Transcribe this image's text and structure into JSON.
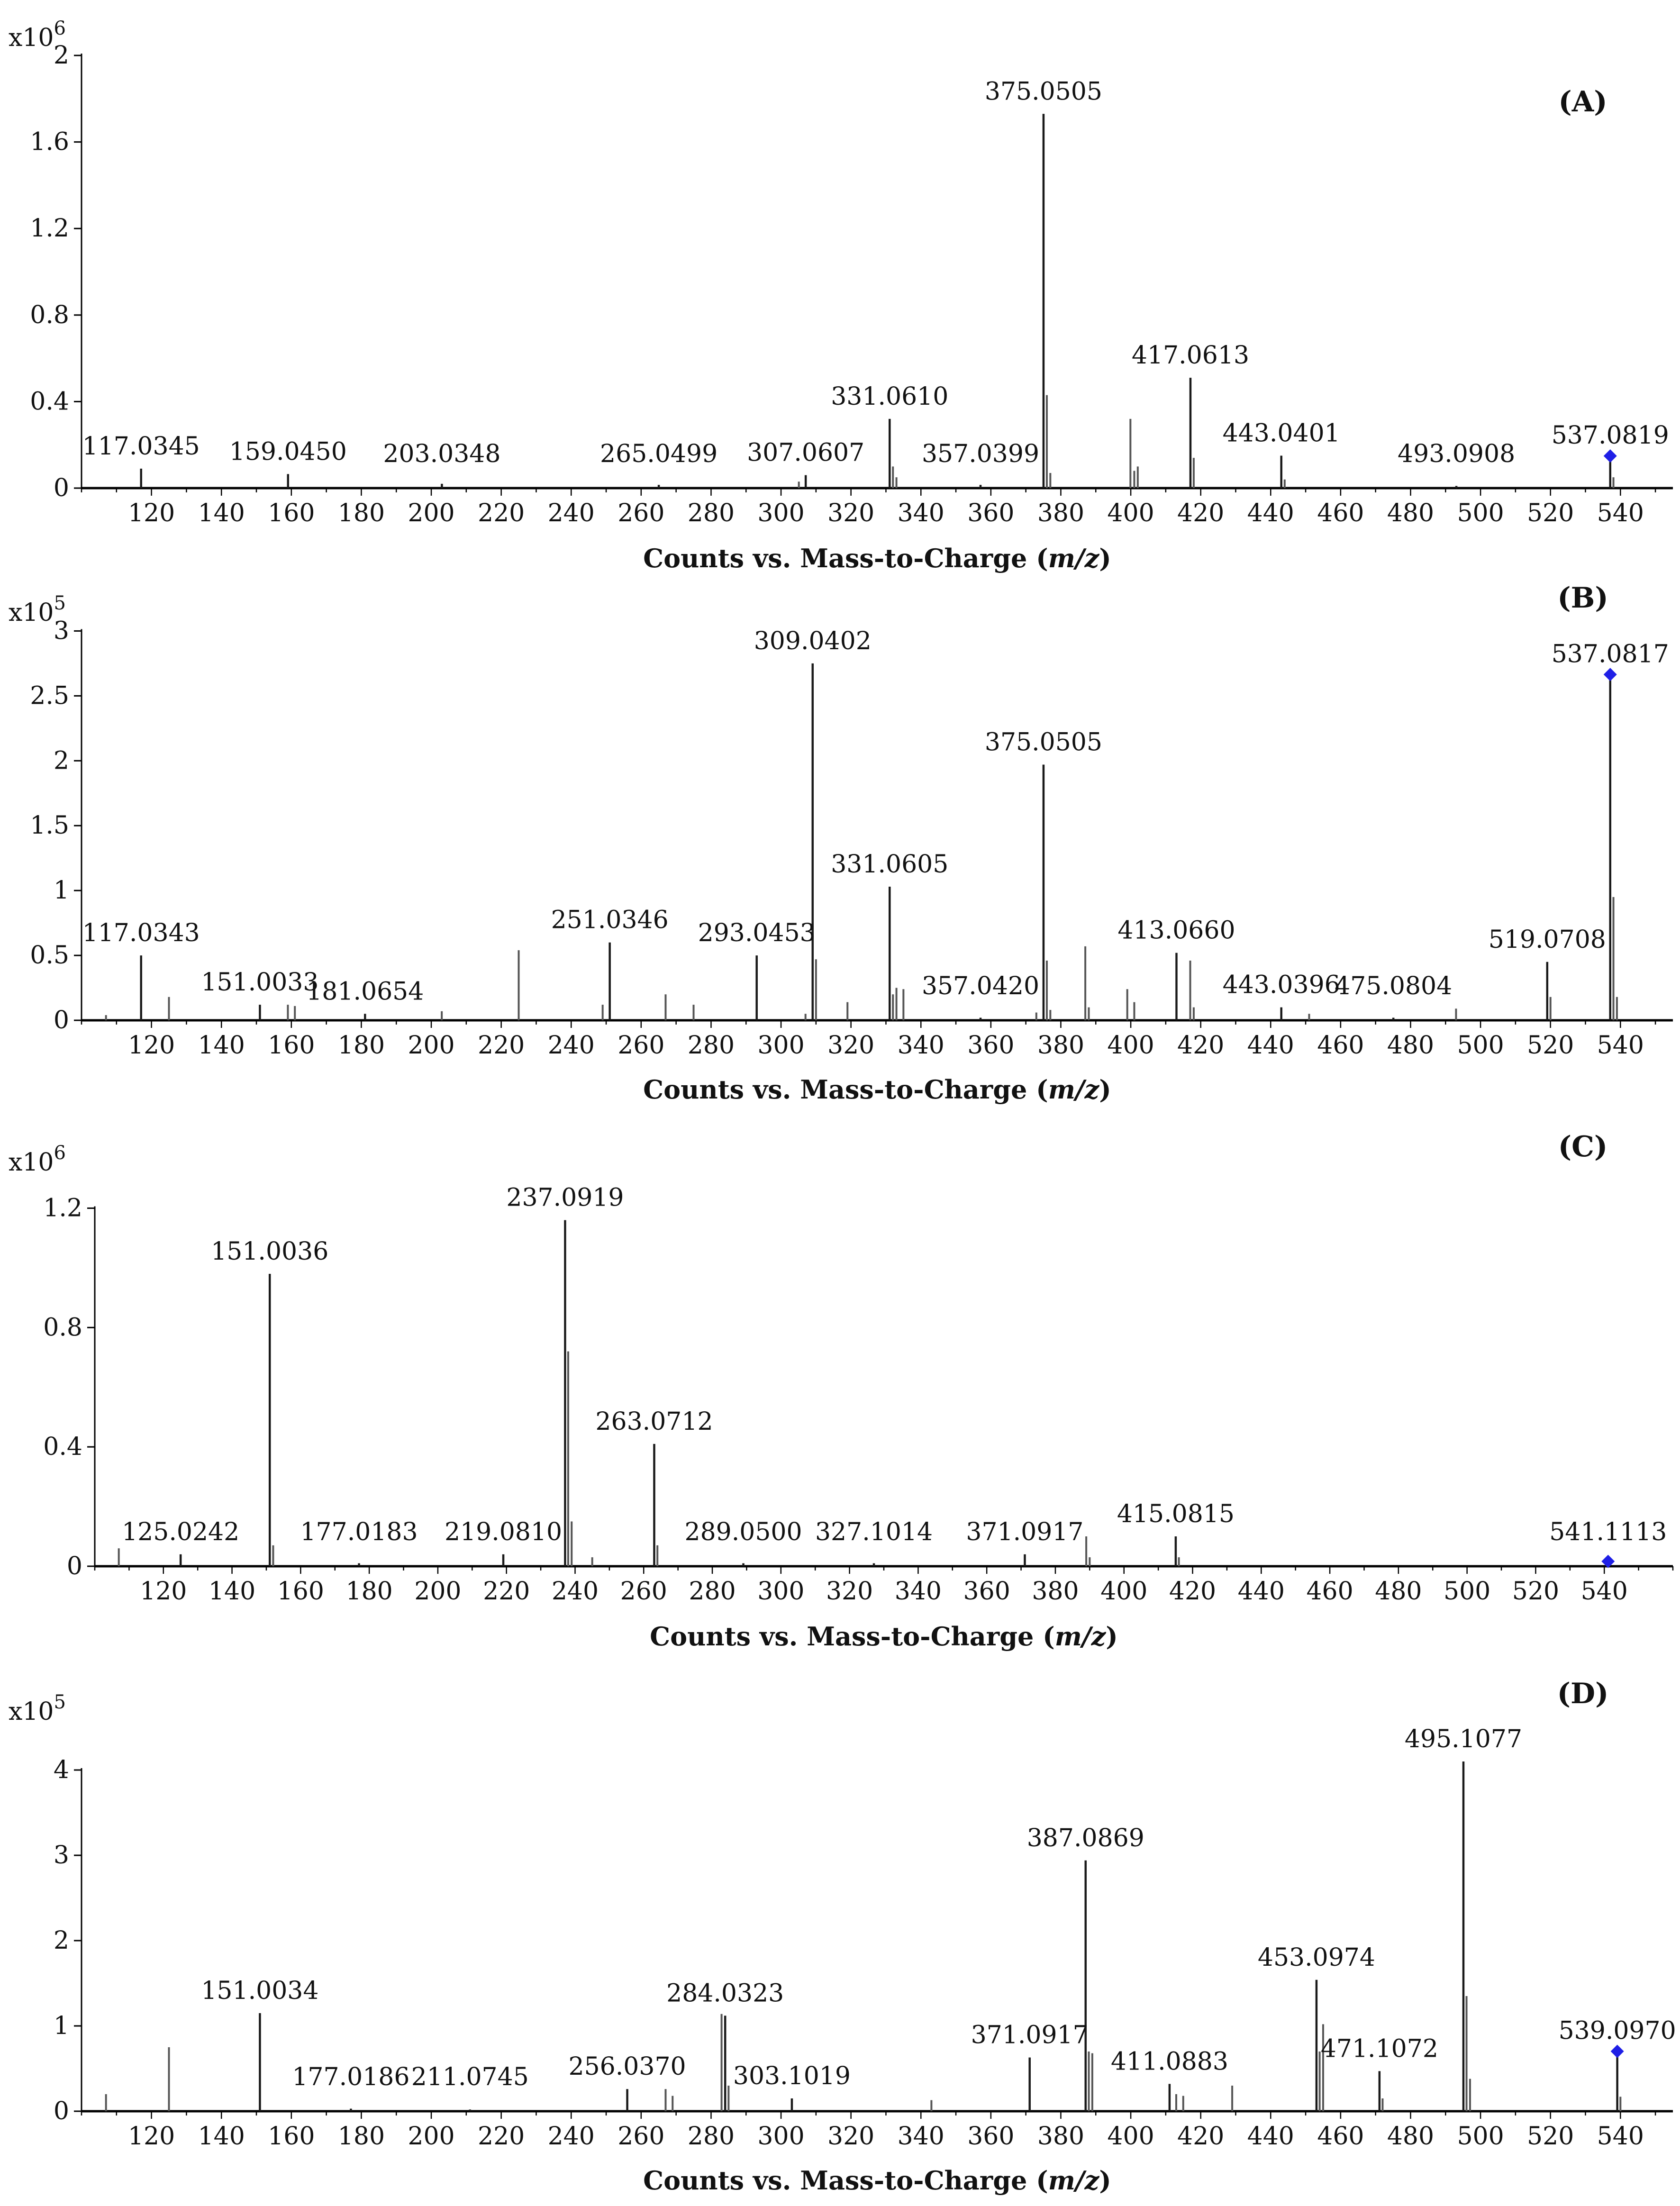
{
  "colors": {
    "axis": "#000000",
    "peak": "#1a1a1a",
    "minor_peak": "#555555",
    "precursor_marker": "#1f1fe6"
  },
  "chart_data": [
    {
      "type": "bar",
      "panel": "(A)",
      "scale_base": "x10",
      "scale_exp": "6",
      "xlabel_prefix": "Counts vs. Mass-to-Charge (",
      "xlabel_unit": "m/z",
      "xlabel_suffix": ")",
      "xlim": [
        100,
        555
      ],
      "ylim": [
        0,
        2.0
      ],
      "yticks": [
        {
          "v": 0,
          "t": "0"
        },
        {
          "v": 0.4,
          "t": "0.4"
        },
        {
          "v": 0.8,
          "t": "0.8"
        },
        {
          "v": 1.2,
          "t": "1.2"
        },
        {
          "v": 1.6,
          "t": "1.6"
        },
        {
          "v": 2.0,
          "t": "2"
        }
      ],
      "xticks": [
        120,
        140,
        160,
        180,
        200,
        220,
        240,
        260,
        280,
        300,
        320,
        340,
        360,
        380,
        400,
        420,
        440,
        460,
        480,
        500,
        520,
        540
      ],
      "peaks": [
        {
          "mz": 117.0345,
          "y": 0.09,
          "label": "117.0345"
        },
        {
          "mz": 159.045,
          "y": 0.065,
          "label": "159.0450"
        },
        {
          "mz": 203.0348,
          "y": 0.02,
          "label": "203.0348"
        },
        {
          "mz": 265.0499,
          "y": 0.015,
          "label": "265.0499"
        },
        {
          "mz": 307.0607,
          "y": 0.06,
          "label": "307.0607"
        },
        {
          "mz": 305.1,
          "y": 0.03
        },
        {
          "mz": 331.061,
          "y": 0.32,
          "label": "331.0610"
        },
        {
          "mz": 332.0,
          "y": 0.1
        },
        {
          "mz": 333.0,
          "y": 0.05
        },
        {
          "mz": 357.0399,
          "y": 0.015,
          "label": "357.0399"
        },
        {
          "mz": 375.0505,
          "y": 1.73,
          "label": "375.0505"
        },
        {
          "mz": 376.0,
          "y": 0.43
        },
        {
          "mz": 377.0,
          "y": 0.07
        },
        {
          "mz": 399.9,
          "y": 0.32
        },
        {
          "mz": 401.0,
          "y": 0.08
        },
        {
          "mz": 402.0,
          "y": 0.1
        },
        {
          "mz": 417.0613,
          "y": 0.51,
          "label": "417.0613"
        },
        {
          "mz": 418.0,
          "y": 0.14
        },
        {
          "mz": 443.0401,
          "y": 0.15,
          "label": "443.0401"
        },
        {
          "mz": 444.0,
          "y": 0.04
        },
        {
          "mz": 493.0908,
          "y": 0.01,
          "label": "493.0908"
        },
        {
          "mz": 537.0819,
          "y": 0.14,
          "label": "537.0819",
          "precursor": true
        },
        {
          "mz": 538.0,
          "y": 0.05
        }
      ]
    },
    {
      "type": "bar",
      "panel": "(B)",
      "scale_base": "x10",
      "scale_exp": "5",
      "xlabel_prefix": "Counts vs. Mass-to-Charge (",
      "xlabel_unit": "m/z",
      "xlabel_suffix": ")",
      "xlim": [
        100,
        555
      ],
      "ylim": [
        0,
        3.25
      ],
      "yticks": [
        {
          "v": 0,
          "t": "0"
        },
        {
          "v": 0.5,
          "t": "0.5"
        },
        {
          "v": 1,
          "t": "1"
        },
        {
          "v": 1.5,
          "t": "1.5"
        },
        {
          "v": 2,
          "t": "2"
        },
        {
          "v": 2.5,
          "t": "2.5"
        },
        {
          "v": 3,
          "t": "3"
        }
      ],
      "xticks": [
        120,
        140,
        160,
        180,
        200,
        220,
        240,
        260,
        280,
        300,
        320,
        340,
        360,
        380,
        400,
        420,
        440,
        460,
        480,
        500,
        520,
        540
      ],
      "peaks": [
        {
          "mz": 107.0,
          "y": 0.04
        },
        {
          "mz": 117.0343,
          "y": 0.5,
          "label": "117.0343"
        },
        {
          "mz": 125.0,
          "y": 0.18
        },
        {
          "mz": 151.0033,
          "y": 0.12,
          "label": "151.0033"
        },
        {
          "mz": 159.0,
          "y": 0.12
        },
        {
          "mz": 161.0,
          "y": 0.11
        },
        {
          "mz": 181.0654,
          "y": 0.05,
          "label": "181.0654"
        },
        {
          "mz": 203.0,
          "y": 0.07
        },
        {
          "mz": 225.0,
          "y": 0.54
        },
        {
          "mz": 249.0,
          "y": 0.12
        },
        {
          "mz": 251.0346,
          "y": 0.6,
          "label": "251.0346"
        },
        {
          "mz": 267.0,
          "y": 0.2
        },
        {
          "mz": 275.0,
          "y": 0.12
        },
        {
          "mz": 293.0453,
          "y": 0.5,
          "label": "293.0453"
        },
        {
          "mz": 307.0,
          "y": 0.05
        },
        {
          "mz": 309.0402,
          "y": 2.75,
          "label": "309.0402"
        },
        {
          "mz": 310.0,
          "y": 0.47
        },
        {
          "mz": 319.0,
          "y": 0.14
        },
        {
          "mz": 331.0605,
          "y": 1.03,
          "label": "331.0605"
        },
        {
          "mz": 332.0,
          "y": 0.2
        },
        {
          "mz": 333.0,
          "y": 0.25
        },
        {
          "mz": 335.0,
          "y": 0.24
        },
        {
          "mz": 357.042,
          "y": 0.02,
          "label": "357.0420"
        },
        {
          "mz": 373.0,
          "y": 0.06
        },
        {
          "mz": 375.0505,
          "y": 1.97,
          "label": "375.0505"
        },
        {
          "mz": 376.0,
          "y": 0.46
        },
        {
          "mz": 377.0,
          "y": 0.08
        },
        {
          "mz": 387.0,
          "y": 0.57
        },
        {
          "mz": 388.0,
          "y": 0.1
        },
        {
          "mz": 399.0,
          "y": 0.24
        },
        {
          "mz": 401.0,
          "y": 0.14
        },
        {
          "mz": 413.066,
          "y": 0.52,
          "label": "413.0660"
        },
        {
          "mz": 417.0,
          "y": 0.46
        },
        {
          "mz": 418.0,
          "y": 0.1
        },
        {
          "mz": 443.0396,
          "y": 0.1,
          "label": "443.0396"
        },
        {
          "mz": 451.0,
          "y": 0.05
        },
        {
          "mz": 475.0804,
          "y": 0.02,
          "label": "475.0804"
        },
        {
          "mz": 493.0,
          "y": 0.09
        },
        {
          "mz": 519.0708,
          "y": 0.45,
          "label": "519.0708"
        },
        {
          "mz": 520.0,
          "y": 0.18
        },
        {
          "mz": 537.0817,
          "y": 2.65,
          "label": "537.0817",
          "precursor": true
        },
        {
          "mz": 538.0,
          "y": 0.95
        },
        {
          "mz": 539.0,
          "y": 0.18
        }
      ]
    },
    {
      "type": "bar",
      "panel": "(C)",
      "scale_base": "x10",
      "scale_exp": "6",
      "xlabel_prefix": "Counts vs. Mass-to-Charge (",
      "xlabel_unit": "m/z",
      "xlabel_suffix": ")",
      "xlim": [
        100,
        560
      ],
      "ylim": [
        0,
        1.35
      ],
      "yticks": [
        {
          "v": 0,
          "t": "0"
        },
        {
          "v": 0.4,
          "t": "0.4"
        },
        {
          "v": 0.8,
          "t": "0.8"
        },
        {
          "v": 1.2,
          "t": "1.2"
        }
      ],
      "xticks": [
        120,
        140,
        160,
        180,
        200,
        220,
        240,
        260,
        280,
        300,
        320,
        340,
        360,
        380,
        400,
        420,
        440,
        460,
        480,
        500,
        520,
        540
      ],
      "peaks": [
        {
          "mz": 107.0,
          "y": 0.06
        },
        {
          "mz": 125.0242,
          "y": 0.04,
          "label": "125.0242"
        },
        {
          "mz": 151.0036,
          "y": 0.98,
          "label": "151.0036"
        },
        {
          "mz": 152.0,
          "y": 0.07
        },
        {
          "mz": 177.0183,
          "y": 0.01,
          "label": "177.0183"
        },
        {
          "mz": 219.081,
          "y": 0.04,
          "label": "219.0810"
        },
        {
          "mz": 237.0919,
          "y": 1.16,
          "label": "237.0919"
        },
        {
          "mz": 238.0,
          "y": 0.72
        },
        {
          "mz": 239.0,
          "y": 0.15
        },
        {
          "mz": 245.0,
          "y": 0.03
        },
        {
          "mz": 263.0712,
          "y": 0.41,
          "label": "263.0712"
        },
        {
          "mz": 264.0,
          "y": 0.07
        },
        {
          "mz": 289.05,
          "y": 0.01,
          "label": "289.0500"
        },
        {
          "mz": 327.1014,
          "y": 0.01,
          "label": "327.1014"
        },
        {
          "mz": 371.0917,
          "y": 0.04,
          "label": "371.0917"
        },
        {
          "mz": 389.0,
          "y": 0.1
        },
        {
          "mz": 390.0,
          "y": 0.03
        },
        {
          "mz": 415.0815,
          "y": 0.1,
          "label": "415.0815"
        },
        {
          "mz": 416.0,
          "y": 0.03
        },
        {
          "mz": 541.1113,
          "y": 0.01,
          "label": "541.1113",
          "precursor": true
        }
      ]
    },
    {
      "type": "bar",
      "panel": "(D)",
      "scale_base": "x10",
      "scale_exp": "5",
      "xlabel_prefix": "Counts vs. Mass-to-Charge (",
      "xlabel_unit": "m/z",
      "xlabel_suffix": ")",
      "xlim": [
        100,
        555
      ],
      "ylim": [
        0,
        4.75
      ],
      "yticks": [
        {
          "v": 0,
          "t": "0"
        },
        {
          "v": 1,
          "t": "1"
        },
        {
          "v": 2,
          "t": "2"
        },
        {
          "v": 3,
          "t": "3"
        },
        {
          "v": 4,
          "t": "4"
        }
      ],
      "xticks": [
        120,
        140,
        160,
        180,
        200,
        220,
        240,
        260,
        280,
        300,
        320,
        340,
        360,
        380,
        400,
        420,
        440,
        460,
        480,
        500,
        520,
        540
      ],
      "peaks": [
        {
          "mz": 107.0,
          "y": 0.2
        },
        {
          "mz": 125.0,
          "y": 0.75
        },
        {
          "mz": 151.0034,
          "y": 1.15,
          "label": "151.0034"
        },
        {
          "mz": 177.0186,
          "y": 0.03,
          "label": "177.0186"
        },
        {
          "mz": 211.0745,
          "y": 0.02,
          "label": "211.0745"
        },
        {
          "mz": 256.037,
          "y": 0.26,
          "label": "256.0370"
        },
        {
          "mz": 267.0,
          "y": 0.26
        },
        {
          "mz": 269.0,
          "y": 0.18
        },
        {
          "mz": 283.0,
          "y": 1.14
        },
        {
          "mz": 284.0323,
          "y": 1.12,
          "label": "284.0323"
        },
        {
          "mz": 285.0,
          "y": 0.3
        },
        {
          "mz": 303.1019,
          "y": 0.15,
          "label": "303.1019"
        },
        {
          "mz": 343.0,
          "y": 0.13
        },
        {
          "mz": 371.0917,
          "y": 0.63,
          "label": "371.0917"
        },
        {
          "mz": 387.0869,
          "y": 2.94,
          "label": "387.0869"
        },
        {
          "mz": 388.0,
          "y": 0.7
        },
        {
          "mz": 389.0,
          "y": 0.68
        },
        {
          "mz": 411.0883,
          "y": 0.32,
          "label": "411.0883"
        },
        {
          "mz": 413.0,
          "y": 0.2
        },
        {
          "mz": 415.0,
          "y": 0.18
        },
        {
          "mz": 429.0,
          "y": 0.3
        },
        {
          "mz": 453.0974,
          "y": 1.54,
          "label": "453.0974"
        },
        {
          "mz": 454.0,
          "y": 0.7
        },
        {
          "mz": 455.0,
          "y": 1.02
        },
        {
          "mz": 471.1072,
          "y": 0.47,
          "label": "471.1072"
        },
        {
          "mz": 472.0,
          "y": 0.15
        },
        {
          "mz": 495.1077,
          "y": 4.1,
          "label": "495.1077"
        },
        {
          "mz": 496.0,
          "y": 1.35
        },
        {
          "mz": 497.0,
          "y": 0.38
        },
        {
          "mz": 539.097,
          "y": 0.68,
          "label": "539.0970",
          "precursor": true
        },
        {
          "mz": 540.0,
          "y": 0.17
        }
      ]
    }
  ]
}
